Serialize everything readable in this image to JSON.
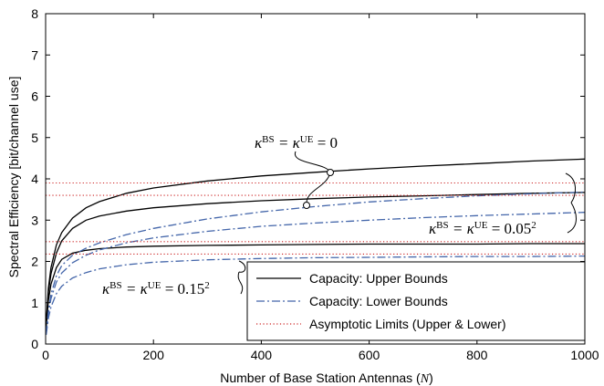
{
  "chart_data": {
    "type": "line",
    "xlabel": "Number of Base Station Antennas (",
    "xlabel_var": "N",
    "xlabel_close": ")",
    "ylabel": "Spectral Efficiency [bit/channel use]",
    "xlim": [
      0,
      1000
    ],
    "ylim": [
      0,
      8
    ],
    "xticks": [
      0,
      200,
      400,
      600,
      800,
      1000
    ],
    "yticks": [
      0,
      1,
      2,
      3,
      4,
      5,
      6,
      7,
      8
    ],
    "grid": false,
    "legend_position": "bottom-right",
    "series": [
      {
        "name": "Capacity: Upper Bounds",
        "style": "solid",
        "color": "#000000",
        "x": [
          1,
          5,
          10,
          20,
          30,
          50,
          75,
          100,
          150,
          200,
          300,
          400,
          500,
          600,
          700,
          800,
          900,
          1000
        ],
        "y": [
          0.5,
          1.35,
          1.85,
          2.4,
          2.7,
          3.05,
          3.3,
          3.45,
          3.65,
          3.78,
          3.95,
          4.07,
          4.16,
          4.24,
          4.31,
          4.37,
          4.43,
          4.48
        ]
      },
      {
        "name": "",
        "style": "solid",
        "color": "#000000",
        "x": [
          1,
          5,
          10,
          20,
          30,
          50,
          75,
          100,
          150,
          200,
          300,
          400,
          500,
          600,
          700,
          800,
          900,
          1000
        ],
        "y": [
          0.45,
          1.25,
          1.7,
          2.2,
          2.5,
          2.8,
          3.0,
          3.1,
          3.22,
          3.3,
          3.4,
          3.47,
          3.52,
          3.56,
          3.59,
          3.62,
          3.65,
          3.67
        ]
      },
      {
        "name": "",
        "style": "solid",
        "color": "#000000",
        "x": [
          1,
          5,
          10,
          20,
          30,
          50,
          75,
          100,
          150,
          200,
          300,
          400,
          500,
          600,
          700,
          800,
          900,
          1000
        ],
        "y": [
          0.4,
          1.05,
          1.45,
          1.85,
          2.05,
          2.2,
          2.27,
          2.31,
          2.35,
          2.37,
          2.39,
          2.4,
          2.41,
          2.42,
          2.42,
          2.42,
          2.43,
          2.43
        ]
      },
      {
        "name": "Capacity: Lower Bounds",
        "style": "dashdot",
        "color": "#4466aa",
        "x": [
          1,
          5,
          10,
          20,
          30,
          50,
          75,
          100,
          150,
          200,
          300,
          400,
          500,
          600,
          700,
          800,
          900,
          1000
        ],
        "y": [
          0.25,
          0.8,
          1.2,
          1.65,
          1.9,
          2.15,
          2.32,
          2.45,
          2.65,
          2.8,
          3.03,
          3.2,
          3.33,
          3.44,
          3.52,
          3.59,
          3.64,
          3.68
        ]
      },
      {
        "name": "",
        "style": "dashdot",
        "color": "#4466aa",
        "x": [
          1,
          5,
          10,
          20,
          30,
          50,
          75,
          100,
          150,
          200,
          300,
          400,
          500,
          600,
          700,
          800,
          900,
          1000
        ],
        "y": [
          0.25,
          0.75,
          1.1,
          1.5,
          1.72,
          1.97,
          2.15,
          2.28,
          2.45,
          2.57,
          2.73,
          2.85,
          2.93,
          3.0,
          3.06,
          3.11,
          3.15,
          3.19
        ]
      },
      {
        "name": "",
        "style": "dashdot",
        "color": "#4466aa",
        "x": [
          1,
          5,
          10,
          20,
          30,
          50,
          75,
          100,
          150,
          200,
          300,
          400,
          500,
          600,
          700,
          800,
          900,
          1000
        ],
        "y": [
          0.22,
          0.62,
          0.9,
          1.22,
          1.4,
          1.6,
          1.73,
          1.82,
          1.92,
          1.98,
          2.04,
          2.07,
          2.09,
          2.1,
          2.11,
          2.12,
          2.12,
          2.13
        ]
      },
      {
        "name": "Asymptotic Limits (Upper & Lower)",
        "style": "dotted",
        "color": "#cc2222",
        "x": [
          0,
          1000
        ],
        "y": [
          3.9,
          3.9
        ]
      },
      {
        "name": "",
        "style": "dotted",
        "color": "#cc2222",
        "x": [
          0,
          1000
        ],
        "y": [
          3.6,
          3.6
        ]
      },
      {
        "name": "",
        "style": "dotted",
        "color": "#cc2222",
        "x": [
          0,
          1000
        ],
        "y": [
          2.48,
          2.48
        ]
      },
      {
        "name": "",
        "style": "dotted",
        "color": "#cc2222",
        "x": [
          0,
          1000
        ],
        "y": [
          2.18,
          2.18
        ]
      }
    ],
    "annotations": [
      {
        "base": "κ",
        "sup1": "BS",
        "mid": " = κ",
        "sup2": "UE",
        "tail": " = 0",
        "sup3": ""
      },
      {
        "base": "κ",
        "sup1": "BS",
        "mid": " = κ",
        "sup2": "UE",
        "tail": " = 0.05",
        "sup3": "2"
      },
      {
        "base": "κ",
        "sup1": "BS",
        "mid": " = κ",
        "sup2": "UE",
        "tail": " = 0.15",
        "sup3": "2"
      }
    ]
  }
}
